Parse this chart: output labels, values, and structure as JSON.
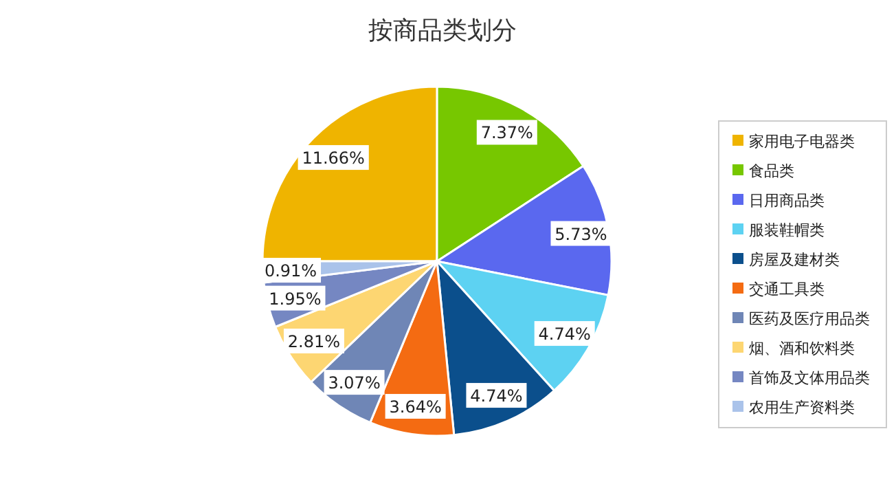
{
  "chart_data": {
    "type": "pie",
    "title": "按商品类划分",
    "categories": [
      "家用电子电器类",
      "食品类",
      "日用商品类",
      "服装鞋帽类",
      "房屋及建材类",
      "交通工具类",
      "医药及医疗用品类",
      "烟、酒和饮料类",
      "首饰及文体用品类",
      "农用生产资料类"
    ],
    "values": [
      11.66,
      7.37,
      5.73,
      4.74,
      4.74,
      3.64,
      3.07,
      2.81,
      1.95,
      0.91
    ],
    "value_labels": [
      "11.66%",
      "7.37%",
      "5.73%",
      "4.74%",
      "4.74%",
      "3.64%",
      "3.07%",
      "2.81%",
      "1.95%",
      "0.91%"
    ],
    "colors": [
      "#efb400",
      "#77c700",
      "#5a68ef",
      "#5dd2f2",
      "#0b4f8c",
      "#f46b12",
      "#6f86b6",
      "#fdd672",
      "#7587c2",
      "#aac3ea"
    ],
    "legend": "right"
  }
}
